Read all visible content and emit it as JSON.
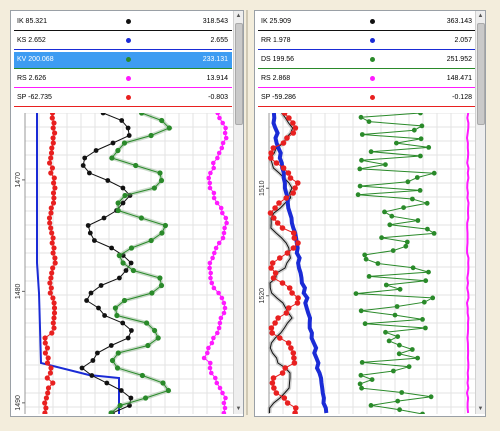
{
  "colors": {
    "black": "#111111",
    "blue": "#1a2bd6",
    "green": "#2a8a2a",
    "magenta": "#ff1aff",
    "red": "#e82020",
    "selected": "#3d9cf2"
  },
  "left": {
    "legend": [
      {
        "name": "IK  85.321",
        "value": "318.543",
        "color": "#111111",
        "selected": false
      },
      {
        "name": "KS  2.652",
        "value": "2.655",
        "color": "#1a2bd6",
        "selected": false
      },
      {
        "name": "KV  200.068",
        "value": "233.131",
        "color": "#2a8a2a",
        "selected": true
      },
      {
        "name": "RS  2.626",
        "value": "13.914",
        "color": "#ff1aff",
        "selected": false
      },
      {
        "name": "SP  -62.735",
        "value": "-0.803",
        "color": "#e82020",
        "selected": false
      }
    ],
    "depth_ticks": [
      {
        "label": "1470",
        "value": 1470
      },
      {
        "label": "1480",
        "value": 1480
      },
      {
        "label": "1490",
        "value": 1490
      }
    ],
    "depth_range": [
      1464,
      1491
    ]
  },
  "right": {
    "legend": [
      {
        "name": "IK  25.909",
        "value": "363.143",
        "color": "#111111",
        "selected": false
      },
      {
        "name": "RR  1.978",
        "value": "2.057",
        "color": "#1a2bd6",
        "selected": false
      },
      {
        "name": "DS  199.56",
        "value": "251.952",
        "color": "#2a8a2a",
        "selected": false
      },
      {
        "name": "RS  2.868",
        "value": "148.471",
        "color": "#ff1aff",
        "selected": false
      },
      {
        "name": "SP  -59.286",
        "value": "-0.128",
        "color": "#e82020",
        "selected": false
      }
    ],
    "depth_ticks": [
      {
        "label": "1510",
        "value": 1510
      },
      {
        "label": "1520",
        "value": 1520
      }
    ],
    "depth_range": [
      1503,
      1531
    ]
  }
}
